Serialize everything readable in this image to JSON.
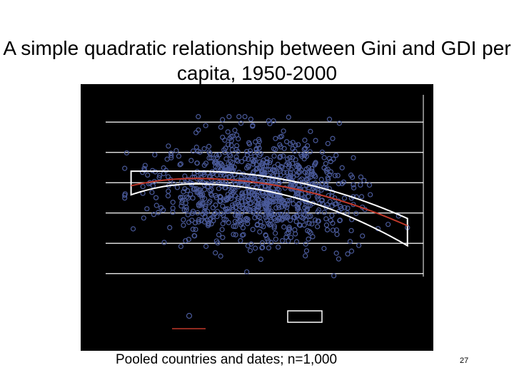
{
  "slide": {
    "title": "A simple quadratic relationship between Gini and GDI per capita, 1950-2000",
    "caption": "Pooled countries and dates; n=1,000",
    "page_number": "27"
  },
  "colors": {
    "background": "#000000",
    "grid": "#ffffff",
    "points": "#4a5a9a",
    "fit_line": "#c0392b",
    "confidence_band": "#ffffff"
  },
  "chart_data": {
    "type": "scatter",
    "title": "A simple quadratic relationship between Gini and GDI per capita, 1950-2000",
    "xlabel": "",
    "ylabel": "",
    "x_axis": {
      "type": "linear",
      "tick_labels_visible": false
    },
    "y_axis": {
      "type": "linear",
      "tick_labels_visible": false
    },
    "xlim": [
      0,
      100
    ],
    "ylim": [
      0,
      100
    ],
    "grid": true,
    "n_points": 1000,
    "point_cloud": {
      "x_range": [
        6,
        95
      ],
      "y_range": [
        0,
        88
      ],
      "x_center": 48,
      "y_center": 48
    },
    "fit": {
      "type": "quadratic",
      "x_range": [
        8,
        95
      ],
      "y_at_x_start": 50,
      "peak_x": 28,
      "peak_y": 54,
      "y_at_x_end": 28
    },
    "confidence_band": {
      "upper_at_x_start": 58,
      "lower_at_x_start": 45,
      "upper_at_x_end": 32,
      "lower_at_x_end": 17
    },
    "legend": {
      "position": "bottom-center",
      "entries": [
        {
          "marker": "circle"
        },
        {
          "marker": "line"
        },
        {
          "marker": "band"
        }
      ]
    }
  }
}
